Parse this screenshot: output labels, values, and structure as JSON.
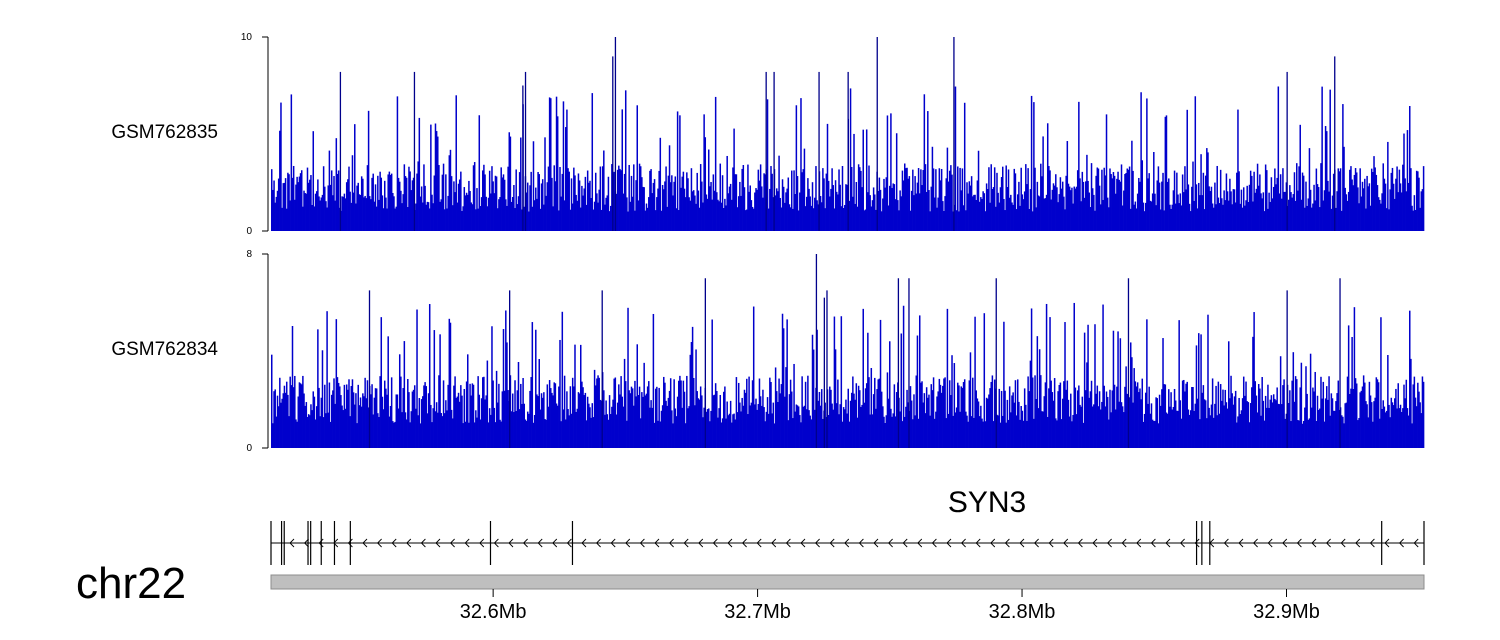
{
  "chart_data": {
    "type": "bar",
    "chromosome": "chr22",
    "x_unit": "Mb",
    "xlim": [
      32.516,
      32.952
    ],
    "x_ticks": [
      {
        "value": 32.6,
        "label": "32.6Mb"
      },
      {
        "value": 32.7,
        "label": "32.7Mb"
      },
      {
        "value": 32.8,
        "label": "32.8Mb"
      },
      {
        "value": 32.9,
        "label": "32.9Mb"
      }
    ],
    "tracks": [
      {
        "name": "GSM762835",
        "ylim": [
          0,
          10
        ],
        "y_tick_labels": [
          "10",
          "0"
        ],
        "color": "#0000cc",
        "bin_count": 1000,
        "baseline": 1.0,
        "noise_max": 3.5,
        "peak_fraction": 0.18,
        "peak_max": 7.5,
        "seed": 762835,
        "notable_peaks": [
          {
            "x": 32.646,
            "value": 10
          },
          {
            "x": 32.745,
            "value": 10
          },
          {
            "x": 32.774,
            "value": 10
          },
          {
            "x": 32.918,
            "value": 9
          },
          {
            "x": 32.645,
            "value": 9
          },
          {
            "x": 32.703,
            "value": 8.2
          },
          {
            "x": 32.706,
            "value": 8.2
          },
          {
            "x": 32.723,
            "value": 8.2
          },
          {
            "x": 32.734,
            "value": 8.2
          },
          {
            "x": 32.9,
            "value": 8.2
          },
          {
            "x": 32.612,
            "value": 8.2
          },
          {
            "x": 32.542,
            "value": 8.2
          },
          {
            "x": 32.57,
            "value": 8.2
          },
          {
            "x": 32.611,
            "value": 7.5
          }
        ]
      },
      {
        "name": "GSM762834",
        "ylim": [
          0,
          8
        ],
        "y_tick_labels": [
          "8",
          "0"
        ],
        "color": "#0000cc",
        "bin_count": 1000,
        "baseline": 1.0,
        "noise_max": 3.0,
        "peak_fraction": 0.2,
        "peak_max": 6.0,
        "seed": 762834,
        "notable_peaks": [
          {
            "x": 32.722,
            "value": 8
          },
          {
            "x": 32.68,
            "value": 7
          },
          {
            "x": 32.753,
            "value": 7
          },
          {
            "x": 32.757,
            "value": 7
          },
          {
            "x": 32.726,
            "value": 6.5
          },
          {
            "x": 32.79,
            "value": 7
          },
          {
            "x": 32.84,
            "value": 7
          },
          {
            "x": 32.92,
            "value": 7
          },
          {
            "x": 32.553,
            "value": 6.5
          },
          {
            "x": 32.606,
            "value": 6.5
          },
          {
            "x": 32.641,
            "value": 6.5
          },
          {
            "x": 32.725,
            "value": 6.2
          },
          {
            "x": 32.9,
            "value": 6.5
          }
        ]
      }
    ],
    "gene": {
      "name": "SYN3",
      "strand": "-",
      "start": 32.516,
      "end": 32.952,
      "exons": [
        32.516,
        32.52,
        32.521,
        32.53,
        32.531,
        32.535,
        32.54,
        32.546,
        32.599,
        32.63,
        32.866,
        32.868,
        32.871,
        32.936,
        32.952
      ]
    },
    "ideogram_color": "#bfbfbf"
  }
}
